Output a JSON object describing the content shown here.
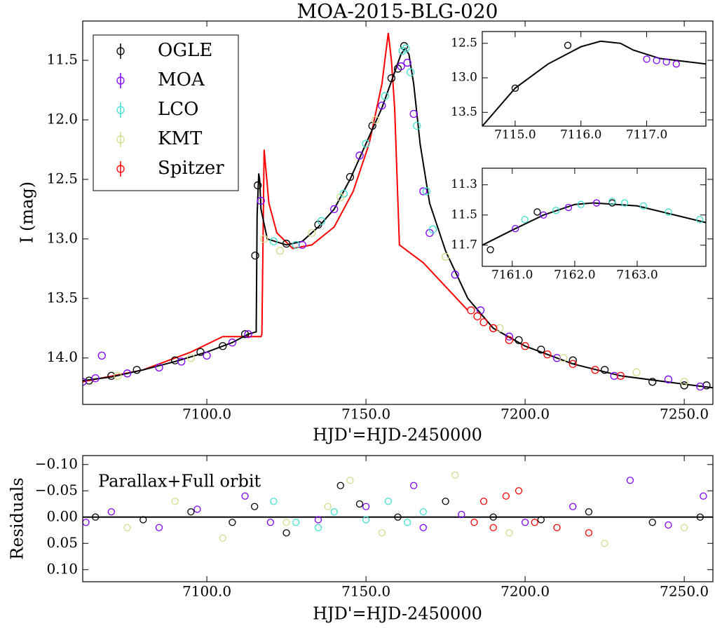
{
  "chart_data": [
    {
      "type": "scatter",
      "title": "MOA-2015-BLG-020",
      "xlabel": "HJD'=HJD-2450000",
      "ylabel": "I (mag)",
      "legend": "upper left",
      "xlim": [
        7061,
        7259
      ],
      "ylim": [
        14.39,
        11.17
      ],
      "xticks": [
        {
          "value": 7100,
          "label": "7100.0"
        },
        {
          "value": 7150,
          "label": "7150.0"
        },
        {
          "value": 7200,
          "label": "7200.0"
        },
        {
          "value": 7250,
          "label": "7250.0"
        }
      ],
      "yticks": [
        11.5,
        {
          "value": 12,
          "label": "12.0"
        },
        12.5,
        {
          "value": 13,
          "label": "13.0"
        },
        13.5,
        {
          "value": 14,
          "label": "14.0"
        }
      ],
      "series": [
        {
          "mode": "line",
          "color": "#ff0000",
          "x": [
            7061,
            7080,
            7095,
            7105,
            7117,
            7117.3,
            7118,
            7119.5,
            7122,
            7127,
            7133,
            7140,
            7146,
            7151,
            7155,
            7157,
            7158,
            7159,
            7160.5,
            7163,
            7168,
            7175,
            7182
          ],
          "values": [
            14.2,
            14.1,
            13.95,
            13.82,
            13.82,
            13.8,
            12.25,
            12.7,
            12.95,
            13.08,
            13.05,
            12.9,
            12.6,
            12.2,
            11.7,
            11.27,
            11.5,
            11.9,
            13.05,
            13.1,
            13.2,
            13.4,
            13.6
          ]
        },
        {
          "mode": "line",
          "color": "#000000",
          "x": [
            7061,
            7070,
            7080,
            7090,
            7100,
            7108,
            7113,
            7115.5,
            7115.8,
            7116.3,
            7116.6,
            7117,
            7119,
            7125,
            7130,
            7135,
            7140,
            7145,
            7150,
            7155,
            7159,
            7161,
            7162.3,
            7163.5,
            7165,
            7167,
            7170,
            7175,
            7182,
            7190,
            7200,
            7215,
            7230,
            7250,
            7259
          ],
          "values": [
            14.19,
            14.16,
            14.1,
            14.03,
            13.95,
            13.87,
            13.8,
            13.78,
            12.8,
            12.45,
            12.5,
            12.75,
            13.0,
            13.05,
            13.02,
            12.9,
            12.75,
            12.5,
            12.2,
            11.9,
            11.6,
            11.45,
            11.4,
            11.45,
            11.7,
            12.2,
            12.7,
            13.1,
            13.5,
            13.75,
            13.9,
            14.05,
            14.15,
            14.22,
            14.25
          ]
        },
        {
          "name": "OGLE",
          "mode": "markers",
          "color": "#000000",
          "x": [
            7063,
            7070,
            7078,
            7090,
            7098,
            7105,
            7112,
            7115.2,
            7116,
            7125,
            7135,
            7145,
            7152,
            7158,
            7160,
            7162,
            7190,
            7198,
            7205,
            7215,
            7225,
            7240,
            7250,
            7257
          ],
          "values": [
            14.19,
            14.15,
            14.1,
            14.02,
            13.95,
            13.9,
            13.8,
            13.14,
            12.55,
            13.04,
            12.88,
            12.48,
            12.05,
            11.65,
            11.57,
            11.38,
            13.75,
            13.85,
            13.93,
            14.02,
            14.1,
            14.2,
            14.23,
            14.23
          ]
        },
        {
          "name": "MOA",
          "mode": "markers",
          "color": "#7f00ff",
          "x": [
            7061,
            7065,
            7067,
            7075,
            7085,
            7092,
            7100,
            7108,
            7113,
            7117,
            7130,
            7140,
            7148,
            7155,
            7161,
            7163,
            7165,
            7168,
            7170,
            7178,
            7186,
            7195,
            7210,
            7228,
            7245,
            7255
          ],
          "values": [
            14.2,
            14.17,
            13.98,
            14.13,
            14.08,
            14.03,
            13.98,
            13.87,
            13.8,
            12.68,
            13.05,
            12.75,
            12.3,
            11.88,
            11.55,
            11.52,
            11.95,
            12.6,
            12.95,
            13.3,
            13.6,
            13.82,
            14.0,
            14.15,
            14.18,
            14.24
          ]
        },
        {
          "name": "LCO",
          "mode": "markers",
          "color": "#40e0d0",
          "x": [
            7121,
            7128,
            7136,
            7143,
            7150,
            7156,
            7161.5,
            7162.5,
            7164,
            7166,
            7169,
            7171
          ],
          "values": [
            13.02,
            13.05,
            12.85,
            12.62,
            12.2,
            11.8,
            11.42,
            11.4,
            11.6,
            12.05,
            12.6,
            12.92
          ]
        },
        {
          "name": "KMT",
          "mode": "markers",
          "color": "#d4dc8c",
          "x": [
            7072,
            7095,
            7118,
            7123,
            7133,
            7142,
            7153,
            7175,
            7192,
            7212,
            7235,
            7250
          ],
          "values": [
            14.15,
            14.0,
            13.0,
            13.1,
            12.95,
            12.65,
            12.0,
            13.15,
            13.75,
            14.0,
            14.12,
            14.2
          ]
        },
        {
          "name": "Spitzer",
          "mode": "markers",
          "color": "#ff0000",
          "x": [
            7183,
            7185,
            7187,
            7190,
            7195,
            7200,
            7207,
            7215,
            7222,
            7230
          ],
          "values": [
            13.6,
            13.65,
            13.7,
            13.75,
            13.85,
            13.9,
            13.97,
            14.05,
            14.1,
            14.15
          ]
        }
      ]
    },
    {
      "type": "scatter",
      "xlim": [
        7114.5,
        7117.9
      ],
      "ylim": [
        13.7,
        12.33
      ],
      "xticks": [
        {
          "value": 7115,
          "label": "7115.0"
        },
        {
          "value": 7116,
          "label": "7116.0"
        },
        {
          "value": 7117,
          "label": "7117.0"
        }
      ],
      "yticks": [
        12.5,
        {
          "value": 13,
          "label": "13.0"
        },
        13.5
      ],
      "series": [
        {
          "mode": "line",
          "color": "#000000",
          "x": [
            7114.5,
            7115,
            7115.5,
            7116,
            7116.3,
            7116.6,
            7116.8,
            7117.2,
            7117.9
          ],
          "values": [
            13.7,
            13.15,
            12.8,
            12.55,
            12.47,
            12.5,
            12.6,
            12.72,
            12.8
          ]
        },
        {
          "mode": "markers",
          "color": "#000000",
          "x": [
            7115,
            7115.8
          ],
          "values": [
            13.15,
            12.53
          ]
        },
        {
          "mode": "markers",
          "color": "#7f00ff",
          "x": [
            7117,
            7117.15,
            7117.3,
            7117.45
          ],
          "values": [
            12.73,
            12.75,
            12.77,
            12.8
          ]
        }
      ]
    },
    {
      "type": "scatter",
      "xlim": [
        7160.52,
        7164.1
      ],
      "ylim": [
        11.84,
        11.19
      ],
      "xticks": [
        {
          "value": 7161,
          "label": "7161.0"
        },
        {
          "value": 7162,
          "label": "7162.0"
        },
        {
          "value": 7163,
          "label": "7163.0"
        }
      ],
      "yticks": [
        11.3,
        11.5,
        11.7
      ],
      "series": [
        {
          "mode": "line",
          "color": "#000000",
          "x": [
            7160.52,
            7161,
            7161.5,
            7162,
            7162.3,
            7163,
            7164.1
          ],
          "values": [
            11.7,
            11.6,
            11.5,
            11.43,
            11.42,
            11.44,
            11.55
          ]
        },
        {
          "mode": "markers",
          "color": "#000000",
          "x": [
            7160.65,
            7161.4,
            7162.6
          ],
          "values": [
            11.73,
            11.48,
            11.42
          ]
        },
        {
          "mode": "markers",
          "color": "#7f00ff",
          "x": [
            7161.05,
            7161.5,
            7161.9,
            7162.35
          ],
          "values": [
            11.59,
            11.5,
            11.45,
            11.42
          ]
        },
        {
          "mode": "markers",
          "color": "#40e0d0",
          "x": [
            7161.2,
            7161.7,
            7162.1,
            7162.6,
            7162.8,
            7163.1,
            7163.5,
            7164
          ],
          "values": [
            11.53,
            11.47,
            11.43,
            11.41,
            11.42,
            11.44,
            11.48,
            11.53
          ]
        }
      ]
    },
    {
      "type": "scatter",
      "xlabel": "HJD'=HJD-2450000",
      "ylabel": "Residuals",
      "annotation": "Parallax+Full orbit",
      "zero_line": true,
      "xlim": [
        7061,
        7259
      ],
      "ylim": [
        0.123,
        -0.117
      ],
      "xticks": [
        {
          "value": 7100,
          "label": "7100.0"
        },
        {
          "value": 7150,
          "label": "7150.0"
        },
        {
          "value": 7200,
          "label": "7200.0"
        },
        {
          "value": 7250,
          "label": "7250.0"
        }
      ],
      "yticks": [
        {
          "value": -0.1,
          "label": "−0.10"
        },
        {
          "value": -0.05,
          "label": "−0.05"
        },
        {
          "value": 0,
          "label": "0.00"
        },
        {
          "value": 0.05,
          "label": "0.05"
        },
        {
          "value": 0.1,
          "label": "0.10"
        }
      ],
      "series": [
        {
          "mode": "markers",
          "color": "#7f00ff",
          "x": [
            7062,
            7070,
            7085,
            7097,
            7112,
            7120,
            7135,
            7150,
            7165,
            7168,
            7180,
            7200,
            7215,
            7233,
            7245,
            7256
          ],
          "values": [
            0.01,
            -0.01,
            0.02,
            -0.015,
            -0.04,
            0.01,
            0.005,
            -0.02,
            -0.06,
            0.02,
            -0.005,
            0.01,
            -0.02,
            -0.07,
            0.015,
            -0.04
          ]
        },
        {
          "mode": "markers",
          "color": "#d4dc8c",
          "x": [
            7075,
            7090,
            7105,
            7125,
            7138,
            7145,
            7155,
            7178,
            7195,
            7225,
            7250
          ],
          "values": [
            0.02,
            -0.03,
            0.04,
            0.01,
            -0.02,
            -0.07,
            0.03,
            -0.08,
            0.03,
            0.05,
            0.02
          ]
        },
        {
          "mode": "markers",
          "color": "#40e0d0",
          "x": [
            7121,
            7128,
            7135,
            7140,
            7150,
            7157,
            7163,
            7168
          ],
          "values": [
            -0.03,
            0.01,
            0.02,
            -0.01,
            0.005,
            -0.03,
            0.01,
            -0.01
          ]
        },
        {
          "mode": "markers",
          "color": "#ff0000",
          "x": [
            7184,
            7187,
            7190,
            7194,
            7198,
            7203,
            7210,
            7220
          ],
          "values": [
            0.01,
            -0.03,
            0.02,
            -0.04,
            -0.05,
            0.01,
            0.02,
            0.03
          ]
        },
        {
          "mode": "markers",
          "color": "#000000",
          "x": [
            7065,
            7080,
            7095,
            7108,
            7115,
            7125,
            7142,
            7148,
            7160,
            7175,
            7190,
            7205,
            7220,
            7240,
            7255
          ],
          "values": [
            0,
            0.005,
            -0.01,
            0.01,
            -0.02,
            0.03,
            -0.06,
            -0.025,
            0,
            -0.03,
            0,
            0.005,
            -0.01,
            0.01,
            0
          ]
        }
      ]
    }
  ]
}
